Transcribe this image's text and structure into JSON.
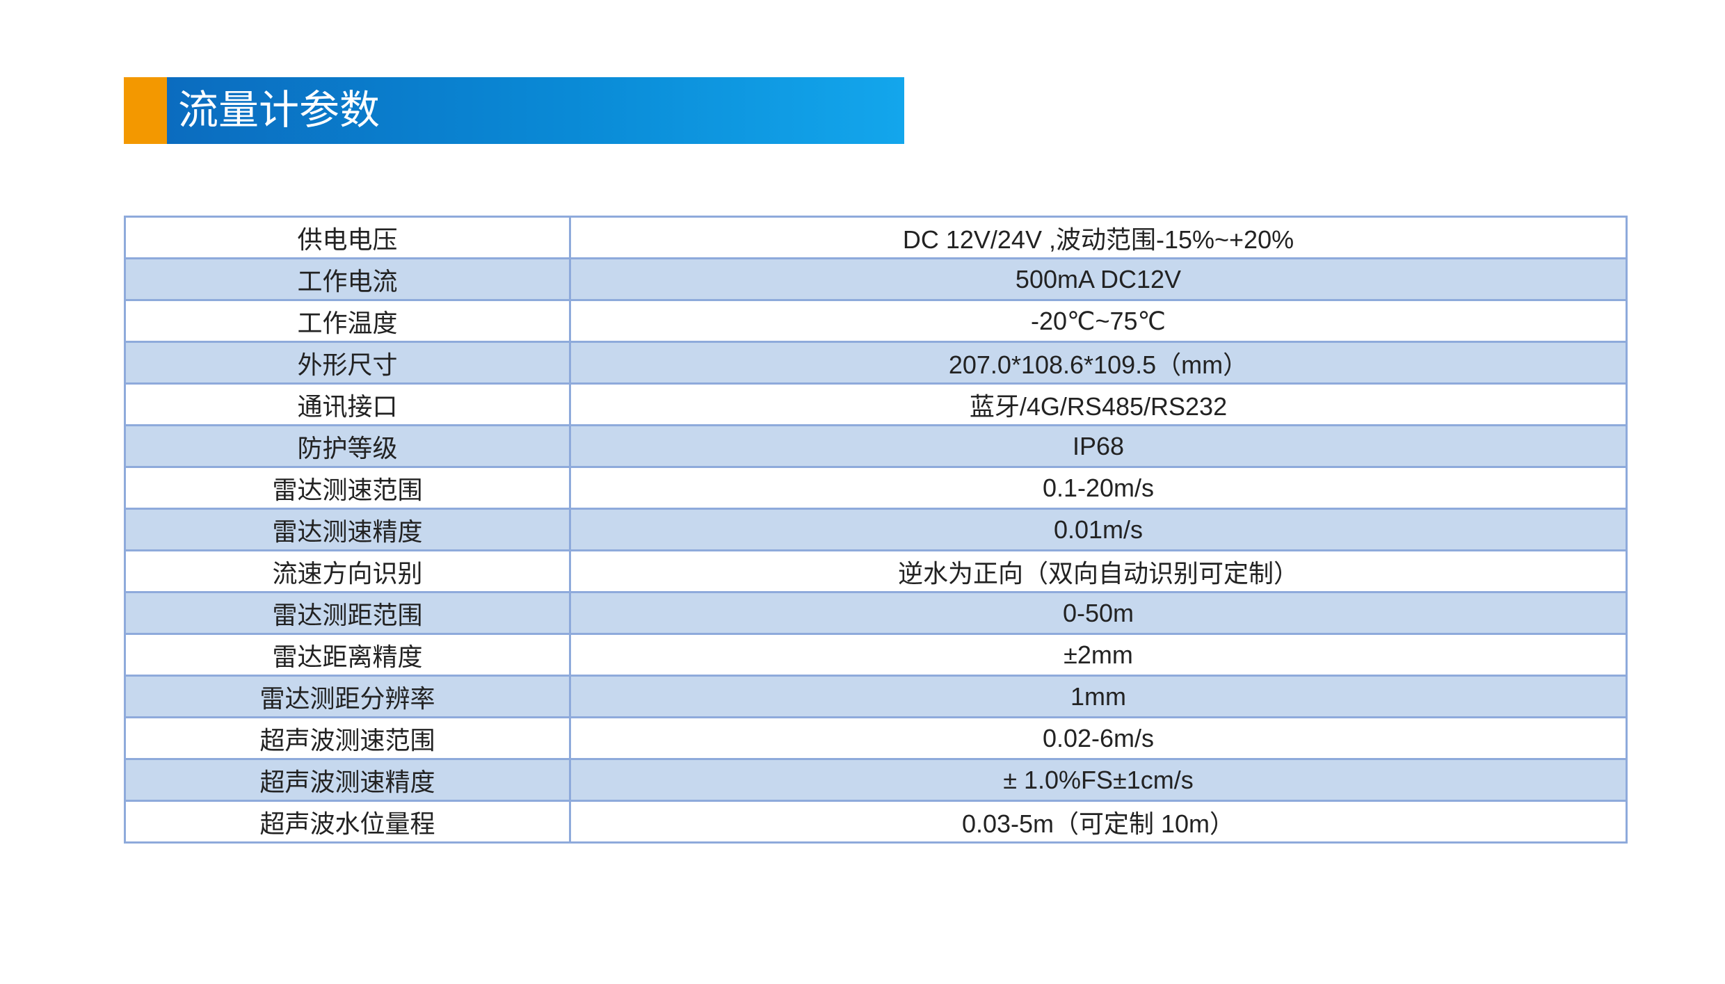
{
  "header": {
    "title": "流量计参数"
  },
  "table": {
    "rows": [
      [
        "供电电压",
        "DC 12V/24V ,波动范围-15%~+20%"
      ],
      [
        "工作电流",
        "500mA  DC12V"
      ],
      [
        "工作温度",
        "-20℃~75℃"
      ],
      [
        "外形尺寸",
        "207.0*108.6*109.5（mm）"
      ],
      [
        "通讯接口",
        "蓝牙/4G/RS485/RS232"
      ],
      [
        "防护等级",
        "IP68"
      ],
      [
        "雷达测速范围",
        "0.1-20m/s"
      ],
      [
        "雷达测速精度",
        "0.01m/s"
      ],
      [
        "流速方向识别",
        "逆水为正向（双向自动识别可定制）"
      ],
      [
        "雷达测距范围",
        "0-50m"
      ],
      [
        "雷达距离精度",
        "±2mm"
      ],
      [
        "雷达测距分辨率",
        "1mm"
      ],
      [
        "超声波测速范围",
        "0.02-6m/s"
      ],
      [
        "超声波测速精度",
        "± 1.0%FS±1cm/s"
      ],
      [
        "超声波水位量程",
        "0.03-5m（可定制 10m）"
      ]
    ]
  }
}
